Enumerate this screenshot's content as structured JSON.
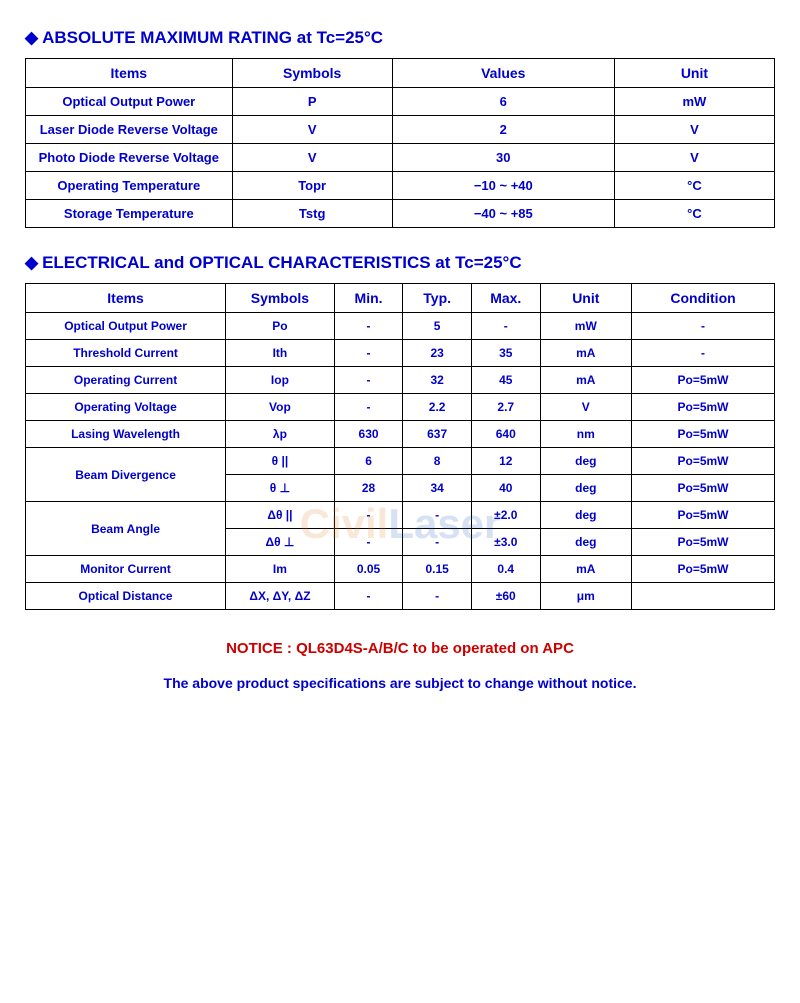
{
  "section1": {
    "title": "ABSOLUTE MAXIMUM RATING at Tc=25°C",
    "headers": {
      "items": "Items",
      "symbols": "Symbols",
      "values": "Values",
      "unit": "Unit"
    },
    "rows": [
      {
        "item": "Optical Output Power",
        "symbol": "P",
        "value": "6",
        "unit": "mW"
      },
      {
        "item": "Laser Diode Reverse Voltage",
        "symbol": "V",
        "value": "2",
        "unit": "V"
      },
      {
        "item": "Photo Diode Reverse Voltage",
        "symbol": "V",
        "value": "30",
        "unit": "V"
      },
      {
        "item": "Operating Temperature",
        "symbol": "Topr",
        "value": "−10 ~ +40",
        "unit": "°C"
      },
      {
        "item": "Storage Temperature",
        "symbol": "Tstg",
        "value": "−40 ~ +85",
        "unit": "°C"
      }
    ]
  },
  "section2": {
    "title": "ELECTRICAL and OPTICAL CHARACTERISTICS at Tc=25°C",
    "headers": {
      "items": "Items",
      "symbols": "Symbols",
      "min": "Min.",
      "typ": "Typ.",
      "max": "Max.",
      "unit": "Unit",
      "condition": "Condition"
    },
    "rows": [
      {
        "item": "Optical Output Power",
        "symbol": "Po",
        "min": "-",
        "typ": "5",
        "max": "-",
        "unit": "mW",
        "cond": "-"
      },
      {
        "item": "Threshold Current",
        "symbol": "Ith",
        "min": "-",
        "typ": "23",
        "max": "35",
        "unit": "mA",
        "cond": "-"
      },
      {
        "item": "Operating Current",
        "symbol": "Iop",
        "min": "-",
        "typ": "32",
        "max": "45",
        "unit": "mA",
        "cond": "Po=5mW"
      },
      {
        "item": "Operating Voltage",
        "symbol": "Vop",
        "min": "-",
        "typ": "2.2",
        "max": "2.7",
        "unit": "V",
        "cond": "Po=5mW"
      },
      {
        "item": "Lasing Wavelength",
        "symbol": "λp",
        "min": "630",
        "typ": "637",
        "max": "640",
        "unit": "nm",
        "cond": "Po=5mW"
      },
      {
        "item": "Beam Divergence",
        "rowspan": 2,
        "symbol": "θ ||",
        "min": "6",
        "typ": "8",
        "max": "12",
        "unit": "deg",
        "cond": "Po=5mW"
      },
      {
        "item": null,
        "symbol": "θ ⊥",
        "min": "28",
        "typ": "34",
        "max": "40",
        "unit": "deg",
        "cond": "Po=5mW"
      },
      {
        "item": "Beam Angle",
        "rowspan": 2,
        "symbol": "Δθ ||",
        "min": "-",
        "typ": "-",
        "max": "±2.0",
        "unit": "deg",
        "cond": "Po=5mW"
      },
      {
        "item": null,
        "symbol": "Δθ ⊥",
        "min": "-",
        "typ": "-",
        "max": "±3.0",
        "unit": "deg",
        "cond": "Po=5mW"
      },
      {
        "item": "Monitor Current",
        "symbol": "Im",
        "min": "0.05",
        "typ": "0.15",
        "max": "0.4",
        "unit": "mA",
        "cond": "Po=5mW"
      },
      {
        "item": "Optical Distance",
        "symbol": "ΔX, ΔY, ΔZ",
        "min": "-",
        "typ": "-",
        "max": "±60",
        "unit": "μm",
        "cond": ""
      }
    ]
  },
  "notice": "NOTICE : QL63D4S-A/B/C to be operated on APC",
  "disclaimer": "The above product specifications are subject to change without notice.",
  "watermark": {
    "part1": "Civil",
    "part2": "Laser"
  },
  "colors": {
    "text": "#0000cc",
    "notice": "#cc0000",
    "border": "#000000",
    "background": "#ffffff"
  }
}
